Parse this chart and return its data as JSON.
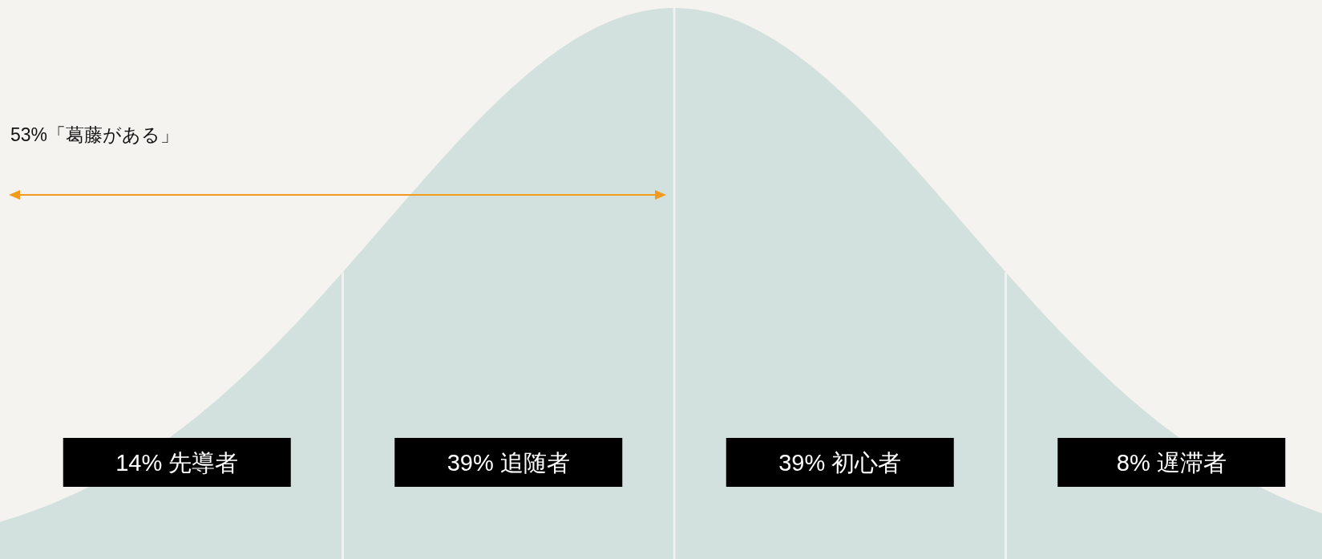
{
  "chart_data": {
    "type": "other",
    "categories": [
      "先導者",
      "追随者",
      "初心者",
      "遅滞者"
    ],
    "values": [
      14,
      39,
      39,
      8
    ],
    "value_labels": [
      "14%",
      "39%",
      "39%",
      "8%"
    ],
    "color": "#000000",
    "annotations": [
      "53%「葛藤がある」"
    ]
  }
}
